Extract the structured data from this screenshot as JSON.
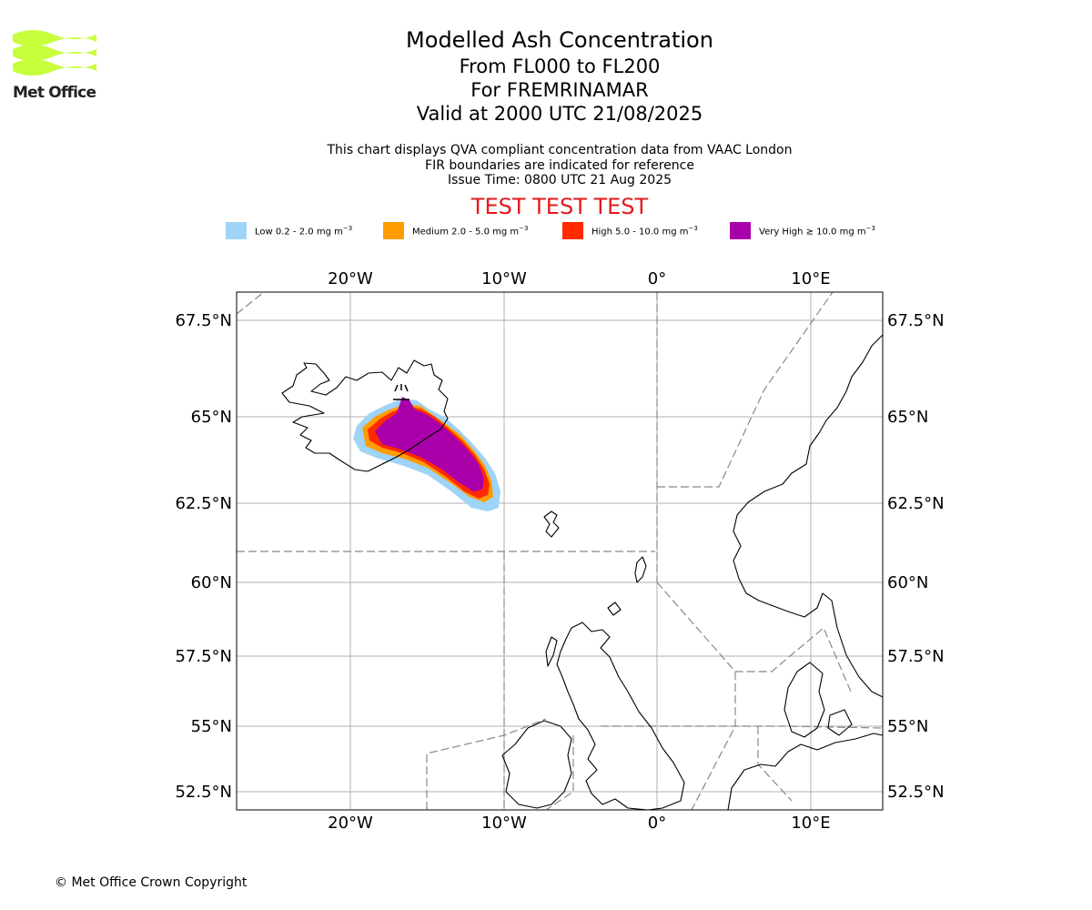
{
  "logo": {
    "text": "Met Office",
    "color": "#c8ff3c"
  },
  "titles": {
    "main": "Modelled Ash Concentration",
    "line2": "From FL000 to FL200",
    "line3": "For FREMRINAMAR",
    "line4": "Valid at 2000 UTC 21/08/2025"
  },
  "notes": {
    "line1": "This chart displays QVA compliant concentration data from VAAC London",
    "line2": "FIR boundaries are indicated for reference",
    "line3": "Issue Time: 0800 UTC 21 Aug 2025"
  },
  "test_banner": "TEST TEST TEST",
  "legend": [
    {
      "label": "Low 0.2 - 2.0 mg m",
      "exp": "−3",
      "color": "#9fd3f7"
    },
    {
      "label": "Medium 2.0 - 5.0 mg m",
      "exp": "−3",
      "color": "#ff9c00"
    },
    {
      "label": "High 5.0 - 10.0 mg m",
      "exp": "−3",
      "color": "#ff2a00"
    },
    {
      "label": "Very High  ≥  10.0 mg m",
      "exp": "−3",
      "color": "#aa00aa"
    }
  ],
  "map": {
    "lon_ticks": [
      "20°W",
      "10°W",
      "0°",
      "10°E"
    ],
    "lat_ticks": [
      "67.5°N",
      "65°N",
      "62.5°N",
      "60°N",
      "57.5°N",
      "55°N",
      "52.5°N"
    ],
    "volcano_marker": "volcano-icon"
  },
  "copyright": "© Met Office Crown Copyright"
}
